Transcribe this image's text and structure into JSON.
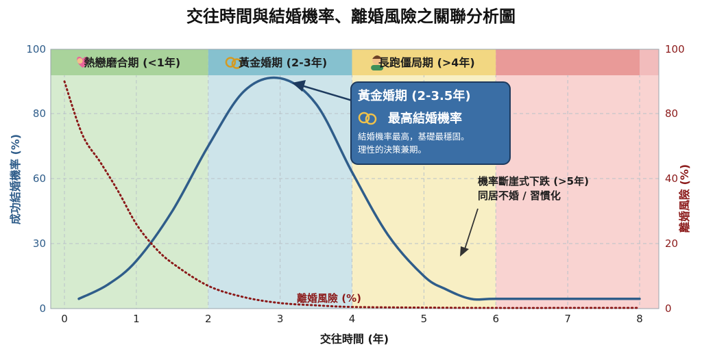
{
  "chart_data": {
    "type": "line",
    "title": "交往時間與結婚機率、離婚風險之關聯分析圖",
    "xlabel": "交往時間 (年)",
    "ylabel_left": "成功結婚機率 (%)",
    "ylabel_right": "離婚風險 (%)",
    "xlim": [
      0,
      8
    ],
    "ylim_left": [
      0,
      100
    ],
    "ylim_right": [
      0,
      100
    ],
    "x_ticks": [
      "0",
      "1",
      "2",
      "3",
      "4",
      "5",
      "6",
      "7",
      "8"
    ],
    "y_ticks_left": [
      "0",
      "30",
      "60",
      "80",
      "100"
    ],
    "y_ticks_right": [
      "0",
      "20",
      "40",
      "80",
      "100"
    ],
    "grid": true,
    "bands": [
      {
        "label": "熱戀磨合期 (<1年)",
        "icon": "couple-heart-icon",
        "x_start": 0,
        "x_end": 2,
        "color": "#d6ebcf",
        "header_color": "#a9d39b"
      },
      {
        "label": "黃金婚期 (2-3年)",
        "icon": "rings-icon",
        "x_start": 2,
        "x_end": 4,
        "color": "#cde4ea",
        "header_color": "#86c1cf"
      },
      {
        "label": "長跑僵局期 (>4年)",
        "icon": "man-icon",
        "x_start": 4,
        "x_end": 6,
        "color": "#f8efc4",
        "header_color": "#f2d782"
      },
      {
        "label": "",
        "icon": "",
        "x_start": 6,
        "x_end": 8,
        "color": "#f9d3d1",
        "header_color": "#e99a98"
      }
    ],
    "series": [
      {
        "name": "成功結婚機率",
        "axis": "left",
        "color": "#2f5d8a",
        "style": "solid",
        "x": [
          0.2,
          0.6,
          1.0,
          1.5,
          2.0,
          2.5,
          3.0,
          3.5,
          4.0,
          4.5,
          5.0,
          5.3,
          5.65,
          6.0,
          7.0,
          8.0
        ],
        "y": [
          4.5,
          11,
          22,
          45,
          70,
          87,
          91,
          83,
          62,
          34,
          15,
          9,
          4.5,
          4.5,
          4.5,
          4.5
        ]
      },
      {
        "name": "離婚風險 (%)",
        "axis": "right",
        "color": "#8b1a1a",
        "style": "dotted",
        "x": [
          0.0,
          0.25,
          0.5,
          0.75,
          1.0,
          1.25,
          1.5,
          2.0,
          2.5,
          3.0,
          3.5,
          4.0,
          5.0,
          6.0,
          7.0,
          8.0
        ],
        "y": [
          90,
          67,
          50,
          36,
          26,
          19,
          14,
          7,
          3.5,
          1.7,
          1,
          0.5,
          0.3,
          0.2,
          0.2,
          0.2
        ]
      }
    ],
    "callout": {
      "title": "黃金婚期 (2-3.5年)",
      "subtitle": "最高結婚機率",
      "body_line1": "結婚機率最高，基礎最穩固。",
      "body_line2": "理性的決策兼期。",
      "color": "#3a6ea5",
      "points_to": {
        "x": 3.15,
        "y": 90
      }
    },
    "annotation": {
      "line1": "機率斷崖式下跌 (>5年)",
      "line2": "同居不婚 / 習慣化",
      "points_to": {
        "x": 5.5,
        "y": 20
      }
    },
    "series_label": "離婚風險 (%)"
  }
}
